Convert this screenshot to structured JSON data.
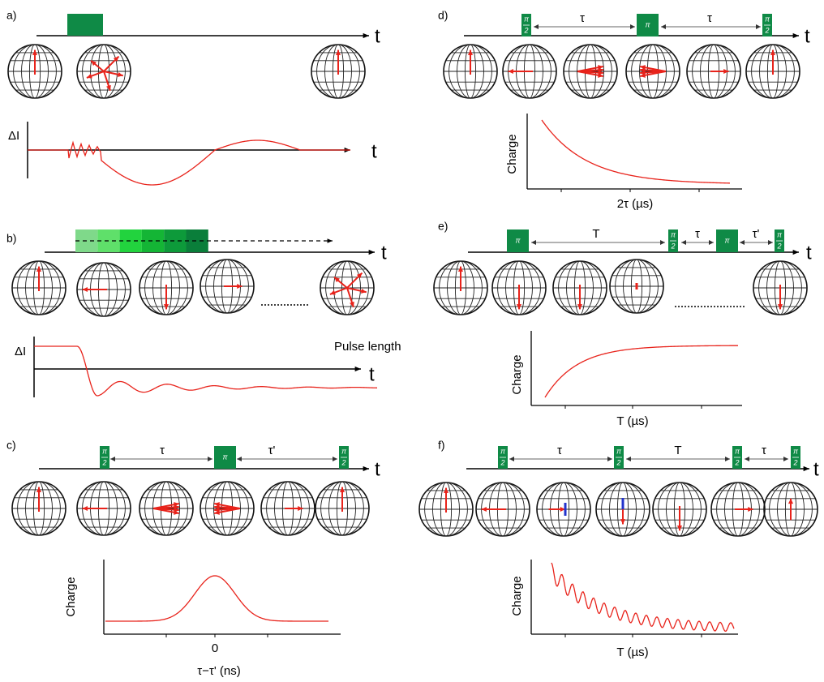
{
  "panels": [
    {
      "label": "a)",
      "axis": "t",
      "signal_axis": "ΔI",
      "signal_time_axis": "t"
    },
    {
      "label": "b)",
      "axis": "t",
      "signal_axis": "ΔI",
      "sweep_label": "Pulse length",
      "signal_time_axis": "t"
    },
    {
      "label": "c)",
      "axis": "t",
      "pulses": [
        {
          "top": "π",
          "bottom": "2"
        },
        {
          "top": "π"
        },
        {
          "top": "π",
          "bottom": "2"
        }
      ],
      "delays": [
        "τ",
        "τ'"
      ],
      "plot": {
        "y_label": "Charge",
        "x_label": "τ−τ' (ns)",
        "x_tick": "0"
      }
    },
    {
      "label": "d)",
      "axis": "t",
      "pulses": [
        {
          "top": "π",
          "bottom": "2"
        },
        {
          "top": "π"
        },
        {
          "top": "π",
          "bottom": "2"
        }
      ],
      "delays": [
        "τ",
        "τ"
      ],
      "plot": {
        "y_label": "Charge",
        "x_label": "2τ (µs)"
      }
    },
    {
      "label": "e)",
      "axis": "t",
      "pulses": [
        {
          "top": "π"
        },
        {
          "top": "π",
          "bottom": "2"
        },
        {
          "top": "π"
        },
        {
          "top": "π",
          "bottom": "2"
        }
      ],
      "delays": [
        "T",
        "τ",
        "τ'"
      ],
      "plot": {
        "y_label": "Charge",
        "x_label": "T (µs)"
      }
    },
    {
      "label": "f)",
      "axis": "t",
      "pulses": [
        {
          "top": "π",
          "bottom": "2"
        },
        {
          "top": "π",
          "bottom": "2"
        },
        {
          "top": "π",
          "bottom": "2"
        },
        {
          "top": "π",
          "bottom": "2"
        }
      ],
      "delays": [
        "τ",
        "T",
        "τ"
      ],
      "plot": {
        "y_label": "Charge",
        "x_label": "T (µs)"
      }
    }
  ]
}
